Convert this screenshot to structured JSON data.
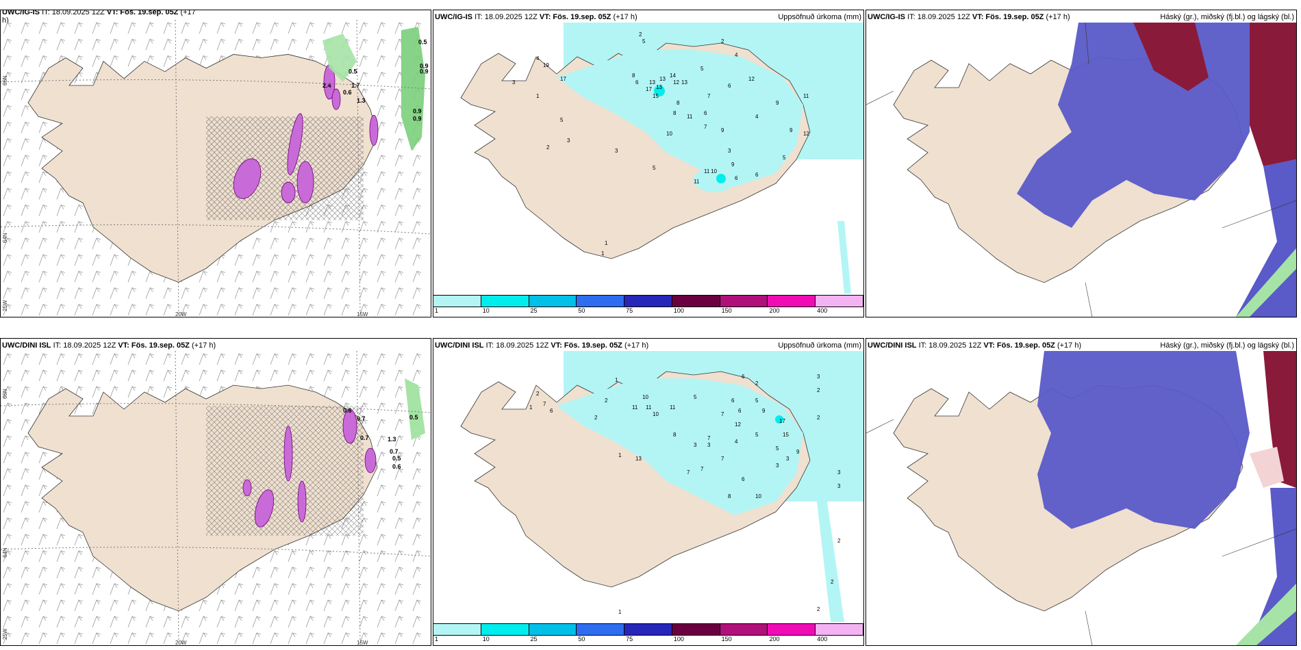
{
  "panels": {
    "p1": {
      "model": "UWC/IG-IS",
      "it": "IT: 18.09.2025 12Z",
      "vt_label": "VT:",
      "vt": "Fös. 19.sep. 05Z",
      "lead": "(+17",
      "lead2": "h)",
      "right": ""
    },
    "p2": {
      "model": "UWC/IG-IS",
      "it": "IT: 18.09.2025 12Z",
      "vt_label": "VT:",
      "vt": "Fös. 19.sep. 05Z",
      "lead": "(+17 h)",
      "right": "Uppsöfnuð úrkoma (mm)"
    },
    "p3": {
      "model": "UWC/IG-IS",
      "it": "IT: 18.09.2025 12Z",
      "vt_label": "VT:",
      "vt": "Fös. 19.sep. 05Z",
      "lead": "(+17 h)",
      "right": "Háský (gr.), miðský (fj.bl.) og lágský (bl.)"
    },
    "p4": {
      "model": "UWC/DINI ISL",
      "it": "IT: 18.09.2025 12Z",
      "vt_label": "VT:",
      "vt": "Fös. 19.sep. 05Z",
      "lead": "(+17 h)",
      "right": ""
    },
    "p5": {
      "model": "UWC/DINI ISL",
      "it": "IT: 18.09.2025 12Z",
      "vt_label": "VT:",
      "vt": "Fös. 19.sep. 05Z",
      "lead": "(+17 h)",
      "right": "Uppsöfnuð úrkoma (mm)"
    },
    "p6": {
      "model": "UWC/DINI ISL",
      "it": "IT: 18.09.2025 12Z",
      "vt_label": "VT:",
      "vt": "Fös. 19.sep. 05Z",
      "lead": "(+17 h)",
      "right": "Háský (gr.), miðský (fj.bl.) og lágský (bl.)"
    }
  },
  "axes": {
    "lat66": "66N",
    "lat64": "64N",
    "lon25": "25W",
    "lon20": "20W",
    "lon15": "15W"
  },
  "legend": {
    "ticks": [
      "1",
      "10",
      "25",
      "50",
      "75",
      "100",
      "150",
      "200",
      "400"
    ],
    "colors": [
      "#b3f5f5",
      "#00eded",
      "#00c0e8",
      "#2f6df0",
      "#2626b8",
      "#6a0040",
      "#b0107a",
      "#f00cb4",
      "#f3b3f3"
    ]
  },
  "labels": {
    "p1": [
      "0.5",
      "0.9",
      "0.9",
      "0.9",
      "0.9",
      "0.5",
      "1.7",
      "0.6",
      "2.4",
      "1.3"
    ],
    "p2": [
      "4",
      "2",
      "2",
      "4",
      "19",
      "17",
      "3",
      "1",
      "13",
      "14",
      "13",
      "13",
      "12",
      "13",
      "15",
      "17",
      "5",
      "8",
      "6",
      "12",
      "10",
      "11",
      "9",
      "7",
      "5",
      "6",
      "3",
      "9",
      "11",
      "6",
      "8",
      "8",
      "11",
      "4",
      "9",
      "5",
      "7",
      "12",
      "6",
      "6",
      "5",
      "5",
      "3",
      "2",
      "3",
      "1",
      "1",
      "11",
      "10",
      "9"
    ],
    "p4": [
      "0.6",
      "0.7",
      "0.7",
      "1.3",
      "0.7",
      "0.5",
      "0.6",
      "0.5"
    ],
    "p5": [
      "1",
      "2",
      "7",
      "6",
      "1",
      "2",
      "2",
      "10",
      "11",
      "11",
      "10",
      "11",
      "5",
      "6",
      "7",
      "6",
      "5",
      "9",
      "5",
      "8",
      "7",
      "12",
      "3",
      "3",
      "4",
      "7",
      "5",
      "2",
      "1",
      "13",
      "3",
      "10",
      "17",
      "15",
      "8",
      "6",
      "9",
      "3",
      "2",
      "3",
      "3",
      "2",
      "2",
      "2",
      "3",
      "1",
      "7",
      "7",
      "2",
      "6"
    ]
  }
}
